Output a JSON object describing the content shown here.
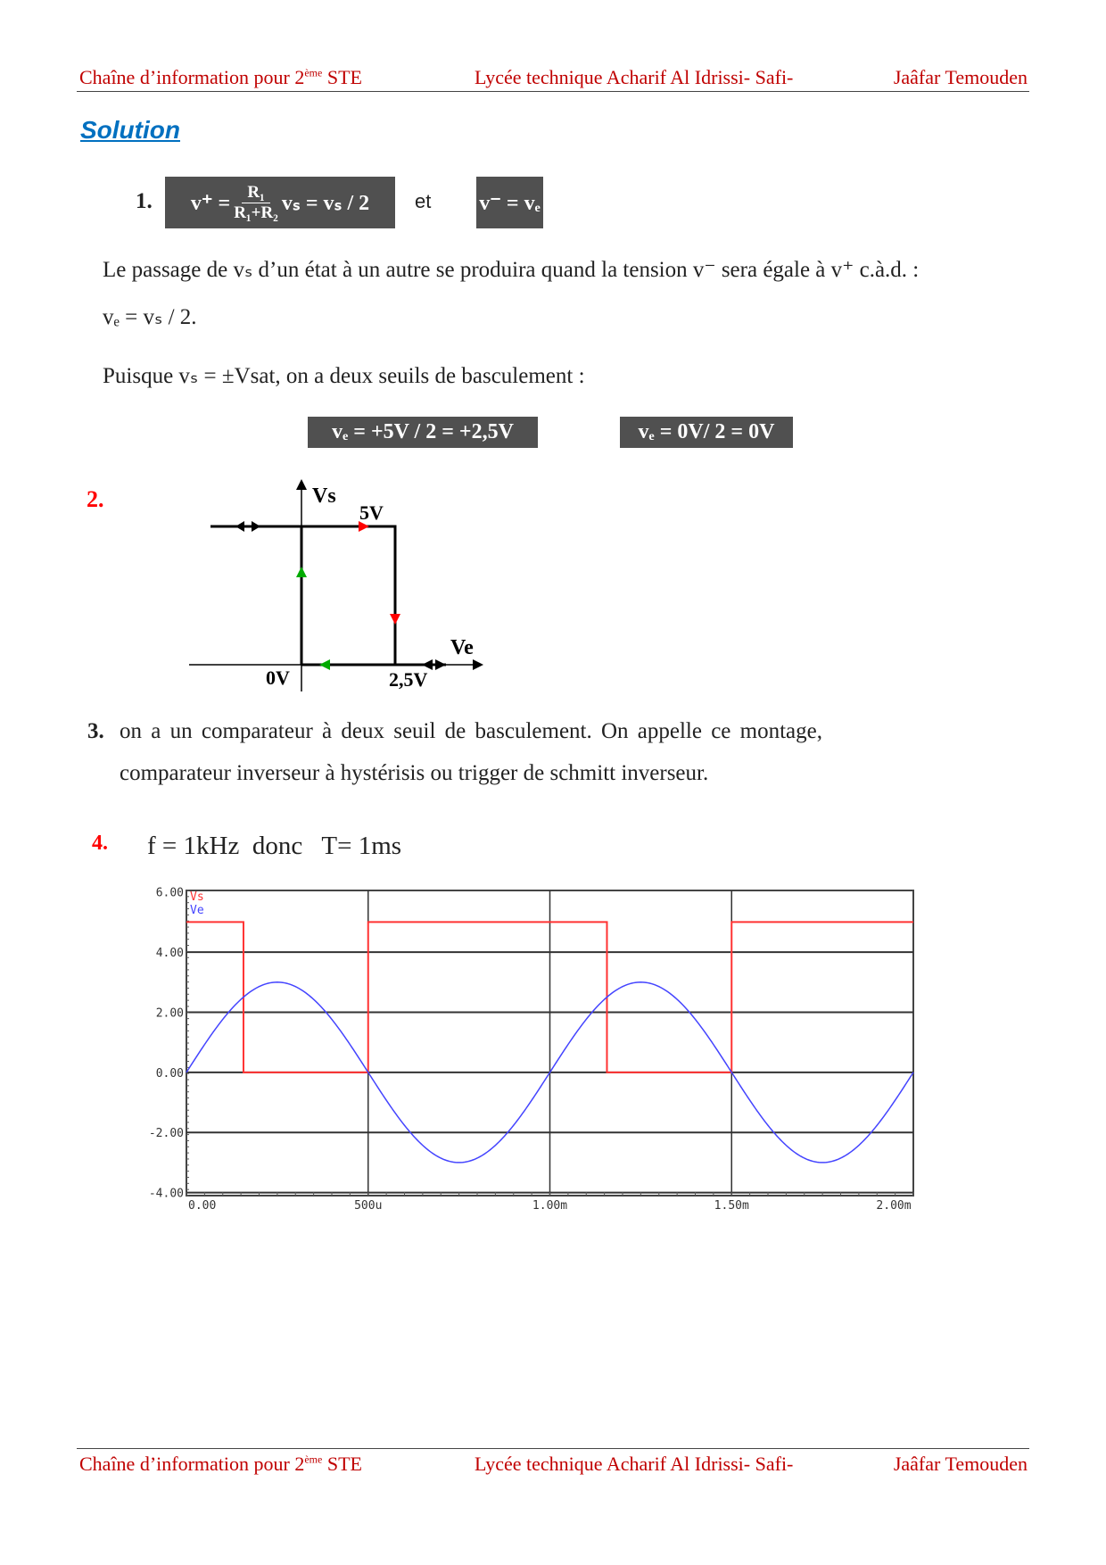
{
  "header": {
    "left": "Chaîne d’information pour 2",
    "left_sup": "ème",
    "left_end": " STE",
    "center": "Lycée technique Acharif Al Idrissi- Safi-",
    "right": "Jaâfar Temouden"
  },
  "footer": {
    "left": "Chaîne d’information pour 2",
    "left_sup": "ème",
    "left_end": " STE",
    "center": "Lycée technique Acharif Al Idrissi- Safi-",
    "right": "Jaâfar Temouden"
  },
  "title": "Solution",
  "q1": {
    "num": "1.",
    "vplus": "v⁺ =",
    "num_frac": "R₁",
    "den_frac": "R₁+R₂",
    "rest": "vₛ = vₛ / 2",
    "et": "et",
    "vminus": "v⁻ = vₑ"
  },
  "para1": "Le passage de vₛ d’un état à un autre se produira quand la tension v⁻ sera égale à v⁺ c.à.d. :",
  "para2": "vₑ = vₛ / 2.",
  "para3": "Puisque vₛ = ±Vsat, on a deux seuils de basculement :",
  "thresholds": [
    "vₑ = +5V / 2 = +2,5V",
    "vₑ = 0V/ 2 = 0V"
  ],
  "q2": {
    "num": "2.",
    "vs": "Vs",
    "ve": "Ve",
    "v5": "5V",
    "v0": "0V",
    "v25": "2,5V"
  },
  "q3": {
    "num": "3.",
    "line1": "on a un comparateur à deux seuil de basculement. On appelle ce montage,",
    "line2": "comparateur inverseur à hystérisis ou trigger de schmitt inverseur."
  },
  "q4": {
    "num": "4.",
    "text": "f = 1kHz  donc   T= 1ms"
  },
  "chart_data": {
    "type": "line",
    "xlim": [
      0,
      0.002
    ],
    "ylim": [
      -4.1,
      6.05
    ],
    "xticks": [
      {
        "v": 0,
        "label": "0.00"
      },
      {
        "v": 0.0005,
        "label": "500u"
      },
      {
        "v": 0.001,
        "label": "1.00m"
      },
      {
        "v": 0.0015,
        "label": "1.50m"
      },
      {
        "v": 0.002,
        "label": "2.00m"
      }
    ],
    "yticks": [
      {
        "v": 6,
        "label": "6.00"
      },
      {
        "v": 4,
        "label": "4.00"
      },
      {
        "v": 2,
        "label": "2.00"
      },
      {
        "v": 0,
        "label": "0.00"
      },
      {
        "v": -2,
        "label": "-2.00"
      },
      {
        "v": -4,
        "label": "-4.00"
      }
    ],
    "grid": true,
    "legend": "top-left",
    "series": [
      {
        "name": "Vs",
        "color": "#ff3333",
        "x": [
          0,
          0.000157,
          0.000157,
          0.0005,
          0.0005,
          0.001157,
          0.001157,
          0.0015,
          0.0015,
          0.002
        ],
        "y": [
          5,
          5,
          0,
          0,
          5,
          5,
          0,
          0,
          5,
          5
        ]
      },
      {
        "name": "Ve",
        "color": "#4444ff",
        "function": "3*sin(2*pi*1000*t)",
        "amplitude": 3,
        "frequency_hz": 1000
      }
    ]
  }
}
